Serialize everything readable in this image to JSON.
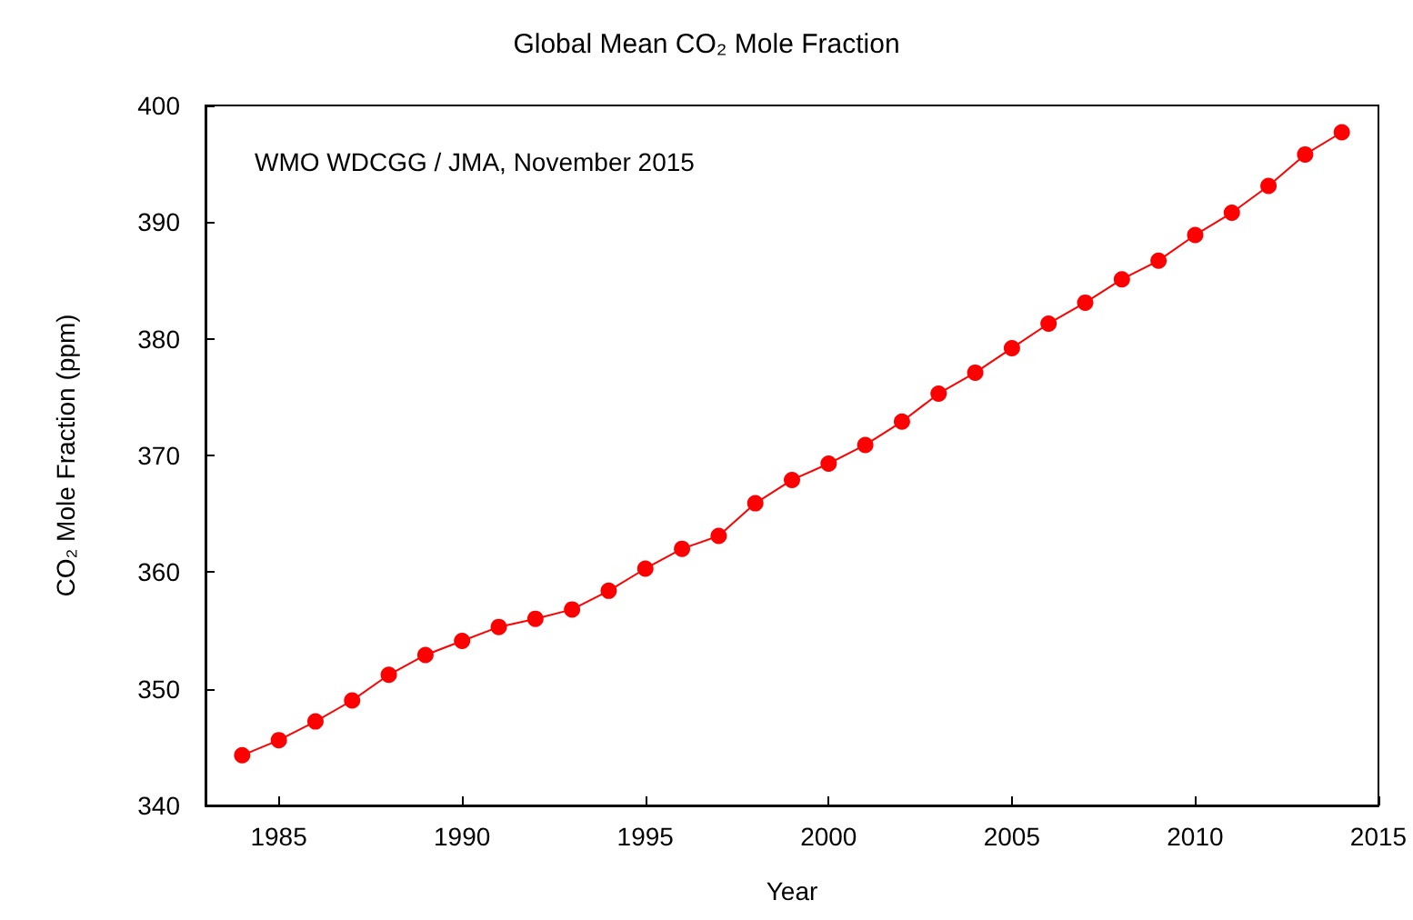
{
  "chart_data": {
    "type": "line",
    "title": "Global Mean CO₂ Mole Fraction",
    "xlabel": "Year",
    "ylabel": "CO₂ Mole Fraction (ppm)",
    "annotations": [
      "WMO WDCGG / JMA, November 2015"
    ],
    "x": [
      1984,
      1985,
      1986,
      1987,
      1988,
      1989,
      1990,
      1991,
      1992,
      1993,
      1994,
      1995,
      1996,
      1997,
      1998,
      1999,
      2000,
      2001,
      2002,
      2003,
      2004,
      2005,
      2006,
      2007,
      2008,
      2009,
      2010,
      2011,
      2012,
      2013,
      2014
    ],
    "series": [
      {
        "color": "#ff0000",
        "values": [
          344.3,
          345.6,
          347.2,
          349.0,
          351.2,
          352.9,
          354.1,
          355.3,
          356.0,
          356.8,
          358.4,
          360.3,
          362.0,
          363.1,
          365.9,
          367.9,
          369.3,
          370.9,
          372.9,
          375.3,
          377.1,
          379.2,
          381.3,
          383.1,
          385.1,
          386.7,
          388.9,
          390.8,
          393.1,
          395.8,
          397.7
        ]
      }
    ],
    "xlim": [
      1983,
      2015
    ],
    "xticks": [
      1985,
      1990,
      1995,
      2000,
      2005,
      2010,
      2015
    ],
    "ylim": [
      340,
      400
    ],
    "yticks": [
      340,
      350,
      360,
      370,
      380,
      390,
      400
    ],
    "grid": false,
    "marker": "circle",
    "line_style": "solid"
  }
}
